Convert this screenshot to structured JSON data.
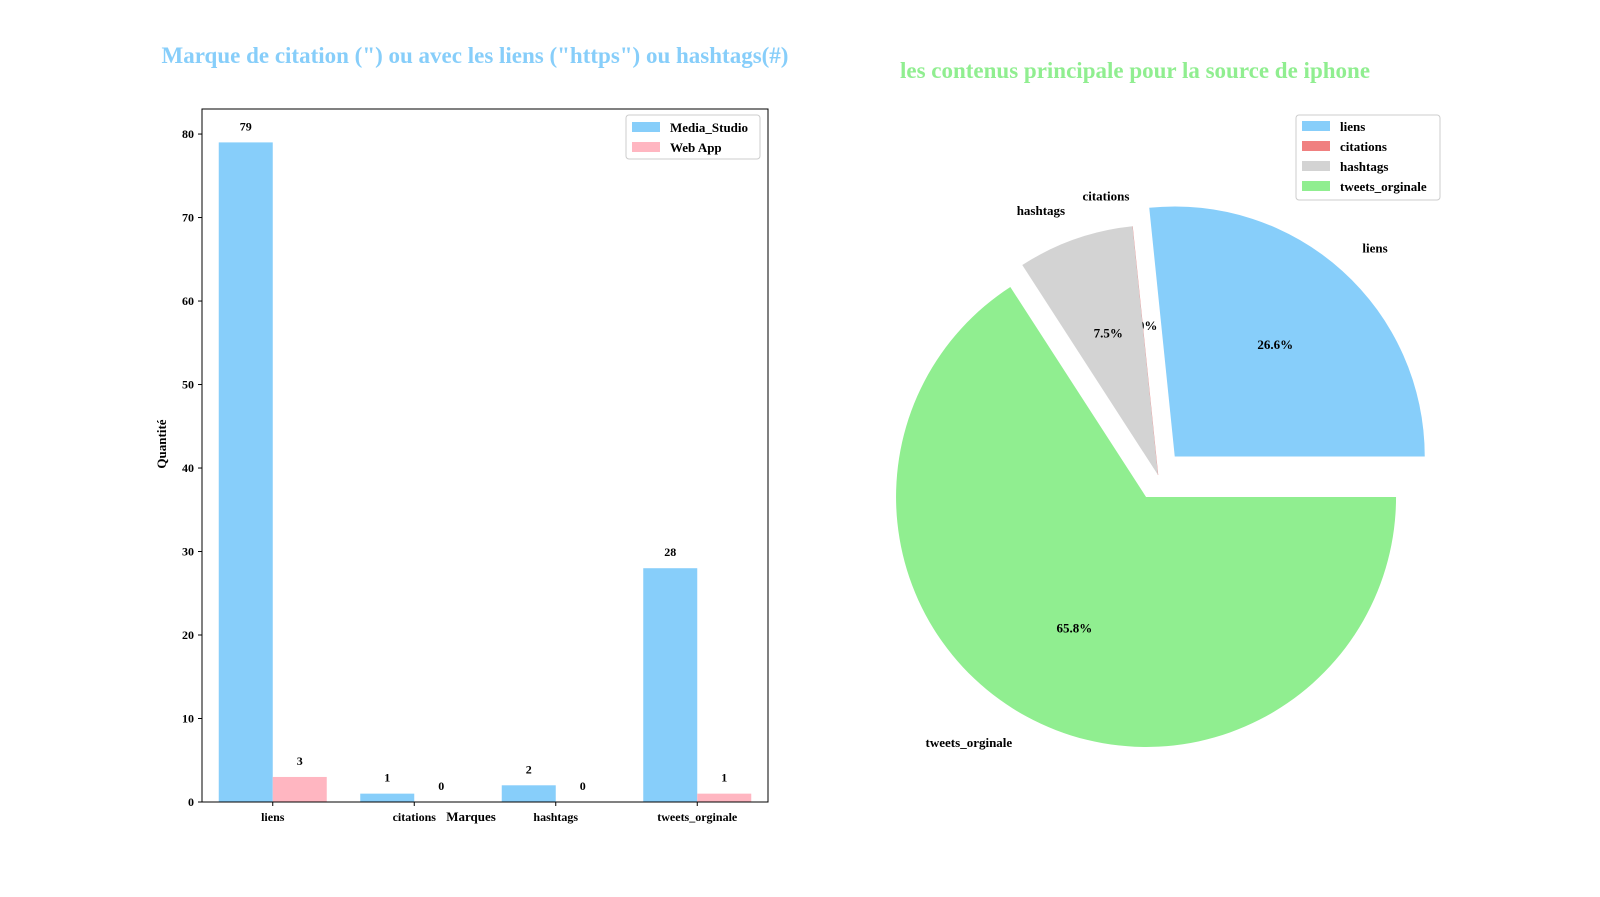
{
  "chart_data": [
    {
      "type": "bar",
      "title": "Marque de citation  (\") ou avec les liens (\"https\") ou hashtags(#)",
      "title_color": "#87CEFA",
      "xlabel": "Marques",
      "ylabel": "Quantité",
      "categories": [
        "liens",
        "citations",
        "hashtags",
        "tweets_orginale"
      ],
      "series": [
        {
          "name": "Media_Studio",
          "values": [
            79,
            1,
            2,
            28
          ],
          "labels": [
            "79",
            "1",
            "2",
            "28"
          ],
          "color": "#87CEFA"
        },
        {
          "name": "Web App",
          "values": [
            3,
            0,
            0,
            1
          ],
          "labels": [
            "3",
            "0",
            "0",
            "1"
          ],
          "color": "#FFB6C1"
        }
      ],
      "ylim": [
        0,
        83
      ],
      "yticks": [
        "0",
        "10",
        "20",
        "30",
        "40",
        "50",
        "60",
        "70",
        "80"
      ],
      "grid": false,
      "legend_position": "top-right"
    },
    {
      "type": "pie",
      "title": "les contenus principale pour la source de iphone",
      "title_color": "#90EE90",
      "slices": [
        {
          "label": "liens",
          "value": 26.6,
          "pct": "26.6%",
          "color": "#87CEFA",
          "explode": true
        },
        {
          "label": "citations",
          "value": 0.0,
          "pct": "0.0%",
          "color": "#F08080",
          "explode": false
        },
        {
          "label": "hashtags",
          "value": 7.5,
          "pct": "7.5%",
          "color": "#D3D3D3",
          "explode": false
        },
        {
          "label": "tweets_orginale",
          "value": 65.8,
          "pct": "65.8%",
          "color": "#90EE90",
          "explode": true
        }
      ],
      "legend_position": "top-right"
    }
  ]
}
